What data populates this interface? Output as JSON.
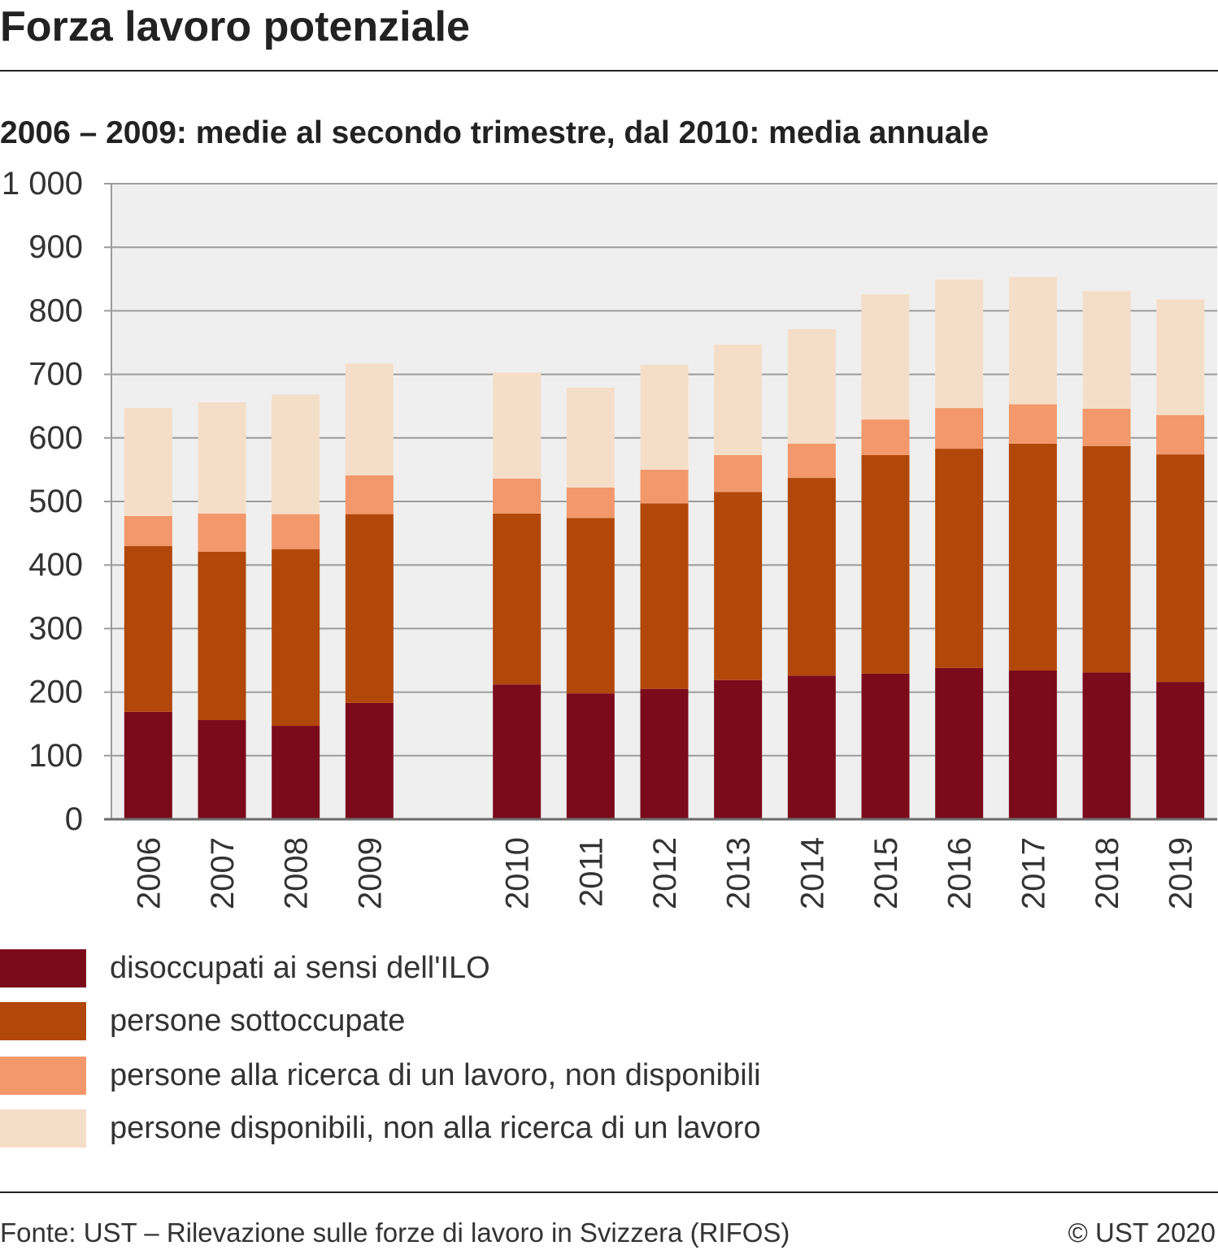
{
  "chart_data": {
    "type": "bar",
    "stacked": true,
    "title": "Forza lavoro potenziale",
    "subtitle": "2006 – 2009: medie al secondo trimestre, dal 2010: media annuale",
    "xlabel": "",
    "ylabel": "",
    "categories": [
      "2006",
      "2007",
      "2008",
      "2009",
      "2010",
      "2011",
      "2012",
      "2013",
      "2014",
      "2015",
      "2016",
      "2017",
      "2018",
      "2019"
    ],
    "series": [
      {
        "name": "disoccupati ai sensi dell'ILO",
        "color": "#7b0a1b",
        "values": [
          169,
          156,
          147,
          183,
          212,
          198,
          205,
          219,
          226,
          229,
          238,
          234,
          231,
          216
        ]
      },
      {
        "name": "persone sottoccupate",
        "color": "#b2470a",
        "values": [
          261,
          265,
          278,
          297,
          269,
          276,
          292,
          296,
          311,
          344,
          345,
          357,
          356,
          358
        ]
      },
      {
        "name": "persone alla ricerca di un lavoro, non disponibili",
        "color": "#f2986a",
        "values": [
          47,
          60,
          55,
          61,
          55,
          48,
          53,
          58,
          54,
          56,
          64,
          62,
          59,
          62
        ]
      },
      {
        "name": "persone disponibili, non alla ricerca di un lavoro",
        "color": "#f5dec8",
        "values": [
          170,
          175,
          188,
          176,
          167,
          157,
          165,
          174,
          180,
          197,
          202,
          200,
          185,
          182
        ]
      }
    ],
    "ylim": [
      0,
      1000
    ],
    "yticks": [
      0,
      100,
      200,
      300,
      400,
      500,
      600,
      700,
      800,
      900,
      1000
    ],
    "ytick_labels": [
      "0",
      "100",
      "200",
      "300",
      "400",
      "500",
      "600",
      "700",
      "800",
      "900",
      "1 000"
    ],
    "grid": true,
    "legend": "bottom-left"
  },
  "footer": {
    "source": "Fonte: UST – Rilevazione sulle forze di lavoro in Svizzera (RIFOS)",
    "copyright": "© UST 2020"
  }
}
